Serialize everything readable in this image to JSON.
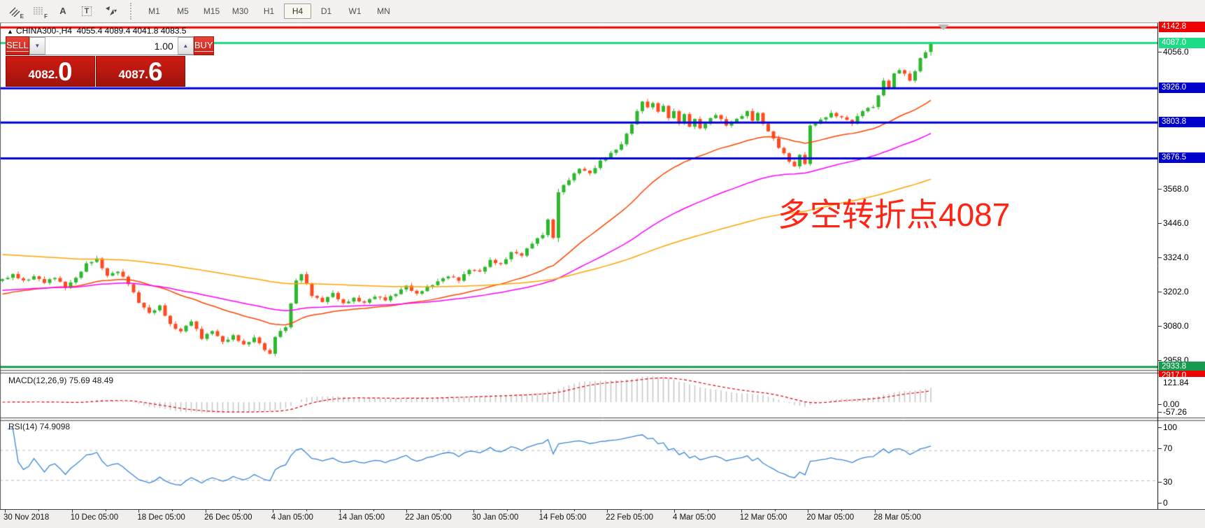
{
  "toolbar": {
    "tool_icons": [
      {
        "name": "equidistant-channel-icon",
        "badge": "E"
      },
      {
        "name": "fibonacci-icon",
        "badge": "F"
      },
      {
        "name": "text-label-icon",
        "label": "A"
      },
      {
        "name": "text-box-icon",
        "label": "T"
      },
      {
        "name": "arrow-objects-icon",
        "caret": "▾"
      }
    ],
    "timeframes": [
      {
        "label": "M1",
        "active": false
      },
      {
        "label": "M5",
        "active": false
      },
      {
        "label": "M15",
        "active": false
      },
      {
        "label": "M30",
        "active": false
      },
      {
        "label": "H1",
        "active": false
      },
      {
        "label": "H4",
        "active": true
      },
      {
        "label": "D1",
        "active": false
      },
      {
        "label": "W1",
        "active": false
      },
      {
        "label": "MN",
        "active": false
      }
    ]
  },
  "chart_header": {
    "collapse_marker": "▲",
    "title": "CHINA300-,H4",
    "ohlc": "4055.4 4089.4 4041.8 4083.5"
  },
  "trade_panel": {
    "sell_label": "SELL",
    "buy_label": "BUY",
    "volume": "1.00",
    "spinner_down": "▼",
    "spinner_up": "▲",
    "sell_price_small": "4082.",
    "sell_price_big": "0",
    "buy_price_small": "4087.",
    "buy_price_big": "6"
  },
  "annotation": {
    "text": "多空转折点4087",
    "color": "#ff2413"
  },
  "price_axis": {
    "ticks": [
      "4056.0",
      "3568.0",
      "3446.0",
      "3324.0",
      "3202.0",
      "3080.0",
      "2958.0"
    ],
    "badges": [
      {
        "text": "4142.8",
        "price": 4142.8,
        "bg": "#ef0000",
        "clip": false
      },
      {
        "text": "4087.0",
        "price": 4087.0,
        "bg": "#1edb85",
        "clip": false
      },
      {
        "text": "3926.0",
        "price": 3926.0,
        "bg": "#0000cc",
        "clip": false
      },
      {
        "text": "3803.8",
        "price": 3803.8,
        "bg": "#0000cc",
        "clip": false
      },
      {
        "text": "3676.5",
        "price": 3676.5,
        "bg": "#0000cc",
        "clip": false
      },
      {
        "text": "2933.8",
        "price": 2933.8,
        "bg": "#169a4e",
        "clip": false
      },
      {
        "text": "2917.0",
        "price": 2917.0,
        "bg": "#ef0000",
        "clip": true
      }
    ]
  },
  "indicators": {
    "macd": {
      "label": "MACD(12,26,9) 75.69 48.49",
      "scale_labels": [
        "121.84",
        "0.00",
        "-57.26"
      ]
    },
    "rsi": {
      "label": "RSI(14) 74.9098",
      "scale_labels": [
        "100",
        "70",
        "30",
        "0"
      ]
    }
  },
  "time_axis": {
    "labels": [
      "30 Nov 2018",
      "10 Dec 05:00",
      "18 Dec 05:00",
      "26 Dec 05:00",
      "4 Jan 05:00",
      "14 Jan 05:00",
      "22 Jan 05:00",
      "30 Jan 05:00",
      "14 Feb 05:00",
      "22 Feb 05:00",
      "4 Mar 05:00",
      "12 Mar 05:00",
      "20 Mar 05:00",
      "28 Mar 05:00"
    ]
  },
  "chart_data": {
    "type": "candlestick",
    "symbol": "CHINA300-",
    "timeframe": "H4",
    "current_ohlc": {
      "open": 4055.4,
      "high": 4089.4,
      "low": 4041.8,
      "close": 4083.5
    },
    "bid": 4082.0,
    "ask": 4087.6,
    "visible_range": {
      "start": "30 Nov 2018",
      "end": "28 Mar 2019",
      "price_axis_ticks": [
        4056,
        3568,
        3446,
        3324,
        3202,
        3080,
        2958
      ]
    },
    "horizontal_lines": [
      {
        "price": 4142.8,
        "color": "#f00000",
        "width": 3
      },
      {
        "price": 4087.0,
        "color": "#1edb85",
        "width": 3
      },
      {
        "price": 3926.0,
        "color": "#0000dd",
        "width": 3
      },
      {
        "price": 3803.8,
        "color": "#0000dd",
        "width": 3
      },
      {
        "price": 3676.5,
        "color": "#0000dd",
        "width": 3
      },
      {
        "price": 2933.8,
        "color": "#169a4e",
        "width": 3
      },
      {
        "price": 2917.0,
        "color": "#e00000",
        "width": 2
      }
    ],
    "candle_count": 178,
    "close_anchors": [
      [
        0,
        3245
      ],
      [
        2,
        3262
      ],
      [
        4,
        3240
      ],
      [
        6,
        3256
      ],
      [
        8,
        3235
      ],
      [
        10,
        3252
      ],
      [
        12,
        3218
      ],
      [
        14,
        3250
      ],
      [
        16,
        3300
      ],
      [
        18,
        3318
      ],
      [
        20,
        3258
      ],
      [
        22,
        3275
      ],
      [
        24,
        3230
      ],
      [
        26,
        3165
      ],
      [
        28,
        3125
      ],
      [
        30,
        3150
      ],
      [
        32,
        3085
      ],
      [
        34,
        3060
      ],
      [
        36,
        3098
      ],
      [
        38,
        3035
      ],
      [
        40,
        3064
      ],
      [
        42,
        3022
      ],
      [
        44,
        3044
      ],
      [
        46,
        3012
      ],
      [
        48,
        3038
      ],
      [
        50,
        2996
      ],
      [
        51,
        2978
      ],
      [
        52,
        3042
      ],
      [
        54,
        3078
      ],
      [
        56,
        3240
      ],
      [
        57,
        3266
      ],
      [
        59,
        3188
      ],
      [
        61,
        3168
      ],
      [
        63,
        3196
      ],
      [
        65,
        3158
      ],
      [
        67,
        3178
      ],
      [
        69,
        3162
      ],
      [
        71,
        3186
      ],
      [
        73,
        3172
      ],
      [
        75,
        3196
      ],
      [
        77,
        3222
      ],
      [
        79,
        3192
      ],
      [
        81,
        3218
      ],
      [
        83,
        3238
      ],
      [
        85,
        3258
      ],
      [
        87,
        3242
      ],
      [
        89,
        3282
      ],
      [
        91,
        3272
      ],
      [
        93,
        3312
      ],
      [
        95,
        3298
      ],
      [
        97,
        3342
      ],
      [
        99,
        3332
      ],
      [
        101,
        3374
      ],
      [
        103,
        3406
      ],
      [
        104,
        3458
      ],
      [
        105,
        3392
      ],
      [
        106,
        3558
      ],
      [
        108,
        3600
      ],
      [
        110,
        3642
      ],
      [
        112,
        3622
      ],
      [
        114,
        3666
      ],
      [
        116,
        3694
      ],
      [
        118,
        3726
      ],
      [
        120,
        3800
      ],
      [
        121,
        3842
      ],
      [
        122,
        3880
      ],
      [
        123,
        3856
      ],
      [
        124,
        3876
      ],
      [
        125,
        3842
      ],
      [
        126,
        3862
      ],
      [
        127,
        3822
      ],
      [
        128,
        3842
      ],
      [
        129,
        3802
      ],
      [
        130,
        3832
      ],
      [
        131,
        3792
      ],
      [
        132,
        3816
      ],
      [
        133,
        3782
      ],
      [
        134,
        3802
      ],
      [
        136,
        3832
      ],
      [
        138,
        3796
      ],
      [
        140,
        3816
      ],
      [
        142,
        3842
      ],
      [
        143,
        3812
      ],
      [
        144,
        3836
      ],
      [
        145,
        3802
      ],
      [
        146,
        3772
      ],
      [
        147,
        3746
      ],
      [
        148,
        3716
      ],
      [
        149,
        3692
      ],
      [
        150,
        3666
      ],
      [
        151,
        3646
      ],
      [
        152,
        3692
      ],
      [
        153,
        3656
      ],
      [
        154,
        3792
      ],
      [
        156,
        3812
      ],
      [
        158,
        3836
      ],
      [
        160,
        3822
      ],
      [
        162,
        3802
      ],
      [
        164,
        3846
      ],
      [
        166,
        3862
      ],
      [
        167,
        3900
      ],
      [
        168,
        3952
      ],
      [
        169,
        3930
      ],
      [
        170,
        3976
      ],
      [
        171,
        3992
      ],
      [
        172,
        3976
      ],
      [
        173,
        3956
      ],
      [
        174,
        3986
      ],
      [
        175,
        4032
      ],
      [
        176,
        4056
      ],
      [
        177,
        4083.5
      ]
    ],
    "moving_averages": [
      {
        "period": 34,
        "color": "#ff4500",
        "seed": 3190
      },
      {
        "period": 72,
        "color": "#ff00ff",
        "seed": 3205
      },
      {
        "period": 150,
        "color": "#ffa500",
        "seed": 3335
      }
    ],
    "macd": {
      "fast": 12,
      "slow": 26,
      "signal": 9,
      "current": 75.69,
      "signal_current": 48.49,
      "scale": [
        121.84,
        0.0,
        -57.26
      ],
      "histogram_color": "#c8c8c8",
      "signal_color": "#e00000"
    },
    "rsi": {
      "period": 14,
      "current": 74.9098,
      "scale": [
        100,
        70,
        30,
        0
      ],
      "line_color": "#3b86d6",
      "levels": [
        70,
        30
      ]
    },
    "up_color": "#2db82d",
    "down_color": "#ff4a1f",
    "legend_position": "none",
    "grid": false
  }
}
